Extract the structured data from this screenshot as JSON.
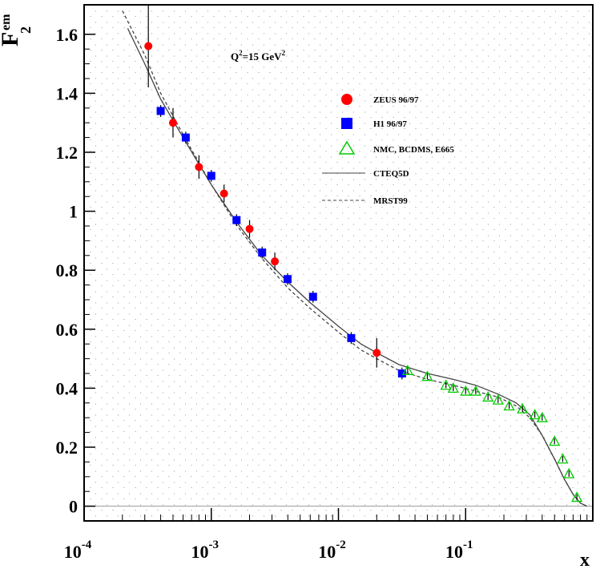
{
  "chart_data": {
    "type": "scatter",
    "title": "",
    "annotation": {
      "q2_prefix": "Q",
      "q2_sup": "2",
      "q2_mid": "=15 GeV",
      "q2_sup2": "2"
    },
    "ylabel_main": "F",
    "ylabel_sub": "2",
    "ylabel_sup": "em",
    "xlabel": "x",
    "x_scale": "log",
    "xlim": [
      0.0001,
      1.0
    ],
    "ylim": [
      -0.05,
      1.7
    ],
    "grid": true,
    "legend_position": "top-right",
    "x_ticks": [
      {
        "base": "10",
        "exp": "-4",
        "value": 0.0001
      },
      {
        "base": "10",
        "exp": "-3",
        "value": 0.001
      },
      {
        "base": "10",
        "exp": "-2",
        "value": 0.01
      },
      {
        "base": "10",
        "exp": "-1",
        "value": 0.1
      }
    ],
    "y_ticks": [
      {
        "label": "0",
        "value": 0
      },
      {
        "label": "0.2",
        "value": 0.2
      },
      {
        "label": "0.4",
        "value": 0.4
      },
      {
        "label": "0.6",
        "value": 0.6
      },
      {
        "label": "0.8",
        "value": 0.8
      },
      {
        "label": "1",
        "value": 1.0
      },
      {
        "label": "1.2",
        "value": 1.2
      },
      {
        "label": "1.4",
        "value": 1.4
      },
      {
        "label": "1.6",
        "value": 1.6
      }
    ],
    "series": [
      {
        "name": "ZEUS 96/97",
        "marker": "circle",
        "color": "#ff0000",
        "x": [
          0.00032,
          0.0005,
          0.0008,
          0.00126,
          0.002,
          0.00316,
          0.02
        ],
        "y": [
          1.56,
          1.3,
          1.15,
          1.06,
          0.94,
          0.83,
          0.52
        ],
        "err": [
          0.14,
          0.05,
          0.04,
          0.03,
          0.03,
          0.03,
          0.05
        ]
      },
      {
        "name": "H1 96/97",
        "marker": "square",
        "color": "#0000ff",
        "x": [
          0.0004,
          0.00063,
          0.001,
          0.00158,
          0.00251,
          0.00398,
          0.00631,
          0.0126,
          0.0316
        ],
        "y": [
          1.34,
          1.25,
          1.12,
          0.97,
          0.86,
          0.77,
          0.71,
          0.57,
          0.45
        ],
        "err": [
          0.02,
          0.02,
          0.02,
          0.02,
          0.02,
          0.02,
          0.02,
          0.02,
          0.02
        ]
      },
      {
        "name": "NMC, BCDMS, E665",
        "marker": "triangle",
        "color": "#00cc00",
        "x": [
          0.035,
          0.05,
          0.07,
          0.08,
          0.1,
          0.12,
          0.15,
          0.18,
          0.22,
          0.28,
          0.35,
          0.4,
          0.5,
          0.58,
          0.65,
          0.75
        ],
        "y": [
          0.46,
          0.44,
          0.41,
          0.4,
          0.39,
          0.39,
          0.37,
          0.36,
          0.34,
          0.33,
          0.31,
          0.3,
          0.22,
          0.16,
          0.11,
          0.03
        ],
        "err": [
          0.01,
          0.01,
          0.01,
          0.01,
          0.01,
          0.01,
          0.01,
          0.01,
          0.01,
          0.01,
          0.01,
          0.01,
          0.01,
          0.01,
          0.01,
          0.01
        ]
      },
      {
        "name": "CTEQ5D",
        "line": "solid",
        "color": "#444444",
        "x": [
          0.00022,
          0.0003,
          0.0004,
          0.0006,
          0.001,
          0.0016,
          0.0025,
          0.004,
          0.006,
          0.01,
          0.015,
          0.02,
          0.03,
          0.05,
          0.08,
          0.12,
          0.18,
          0.25,
          0.32,
          0.4,
          0.5,
          0.6,
          0.7,
          0.8,
          0.9
        ],
        "y": [
          1.62,
          1.5,
          1.38,
          1.25,
          1.09,
          0.96,
          0.85,
          0.76,
          0.69,
          0.61,
          0.55,
          0.52,
          0.48,
          0.45,
          0.43,
          0.41,
          0.38,
          0.35,
          0.31,
          0.24,
          0.16,
          0.09,
          0.04,
          0.01,
          0.0
        ]
      },
      {
        "name": "MRST99",
        "line": "dashed",
        "color": "#444444",
        "x": [
          0.0002,
          0.0003,
          0.0004,
          0.0006,
          0.001,
          0.0016,
          0.0025,
          0.004,
          0.006,
          0.01,
          0.015,
          0.02,
          0.03,
          0.05,
          0.08,
          0.12,
          0.18,
          0.25,
          0.32,
          0.4,
          0.5,
          0.6,
          0.7,
          0.8,
          0.9
        ],
        "y": [
          1.68,
          1.53,
          1.4,
          1.26,
          1.09,
          0.95,
          0.84,
          0.74,
          0.67,
          0.59,
          0.53,
          0.5,
          0.46,
          0.43,
          0.41,
          0.39,
          0.37,
          0.34,
          0.3,
          0.24,
          0.16,
          0.09,
          0.04,
          0.01,
          0.0
        ]
      }
    ]
  }
}
